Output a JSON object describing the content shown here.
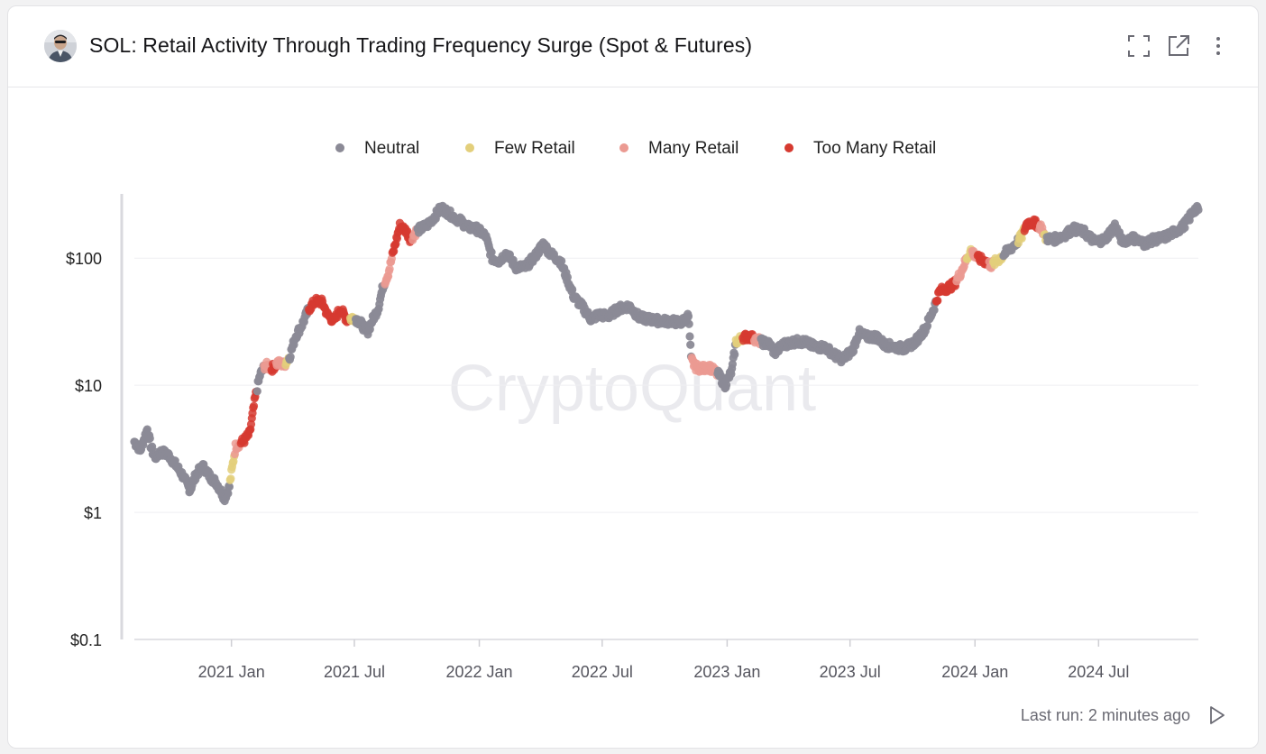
{
  "header": {
    "title": "SOL: Retail Activity Through Trading Frequency Surge (Spot & Futures)",
    "icons": [
      "expand-icon",
      "open-external-icon",
      "more-vertical-icon"
    ]
  },
  "watermark": "CryptoQuant",
  "footer": {
    "last_run": "Last run: 2 minutes ago"
  },
  "colors": {
    "Neutral": "#8b8a96",
    "Few Retail": "#e3cf7b",
    "Many Retail": "#eb9a92",
    "Too Many Retail": "#d63a30"
  },
  "chart_data": {
    "type": "scatter",
    "title": "SOL: Retail Activity Through Trading Frequency Surge (Spot & Futures)",
    "y_scale": "log",
    "ylim": [
      0.1,
      300
    ],
    "y_ticks": [
      0.1,
      1,
      10,
      100
    ],
    "y_tick_labels": [
      "$0.1",
      "$1",
      "$10",
      "$100"
    ],
    "xlim": [
      "2020-08-11",
      "2024-11-25"
    ],
    "x_ticks": [
      "2021-01-01",
      "2021-07-01",
      "2022-01-01",
      "2022-07-01",
      "2023-01-01",
      "2023-07-01",
      "2024-01-01",
      "2024-07-01"
    ],
    "x_tick_labels": [
      "2021 Jan",
      "2021 Jul",
      "2022 Jan",
      "2022 Jul",
      "2023 Jan",
      "2023 Jul",
      "2024 Jan",
      "2024 Jul"
    ],
    "legend": [
      "Neutral",
      "Few Retail",
      "Many Retail",
      "Too Many Retail"
    ],
    "legend_position": "top-center",
    "grid": "horizontal",
    "price_path": [
      [
        "2020-08-11",
        3.6
      ],
      [
        "2020-08-20",
        3.1
      ],
      [
        "2020-08-30",
        4.5
      ],
      [
        "2020-09-05",
        3.2
      ],
      [
        "2020-09-10",
        2.7
      ],
      [
        "2020-09-20",
        3.0
      ],
      [
        "2020-10-01",
        2.8
      ],
      [
        "2020-10-10",
        2.4
      ],
      [
        "2020-10-20",
        2.0
      ],
      [
        "2020-11-01",
        1.5
      ],
      [
        "2020-11-10",
        2.0
      ],
      [
        "2020-11-20",
        2.3
      ],
      [
        "2020-12-01",
        1.9
      ],
      [
        "2020-12-10",
        1.7
      ],
      [
        "2020-12-22",
        1.3
      ],
      [
        "2020-12-29",
        1.6
      ],
      [
        "2021-01-03",
        2.4
      ],
      [
        "2021-01-07",
        3.3
      ],
      [
        "2021-01-20",
        3.7
      ],
      [
        "2021-01-28",
        4.2
      ],
      [
        "2021-02-05",
        8.0
      ],
      [
        "2021-02-12",
        12.0
      ],
      [
        "2021-02-20",
        14.5
      ],
      [
        "2021-03-01",
        13.5
      ],
      [
        "2021-03-10",
        15.0
      ],
      [
        "2021-03-20",
        14.5
      ],
      [
        "2021-03-28",
        17.0
      ],
      [
        "2021-04-05",
        24.0
      ],
      [
        "2021-04-15",
        30.0
      ],
      [
        "2021-04-25",
        40.0
      ],
      [
        "2021-05-05",
        46.0
      ],
      [
        "2021-05-15",
        45.0
      ],
      [
        "2021-05-22",
        36.0
      ],
      [
        "2021-06-01",
        32.0
      ],
      [
        "2021-06-10",
        40.0
      ],
      [
        "2021-06-20",
        33.0
      ],
      [
        "2021-07-01",
        34.0
      ],
      [
        "2021-07-10",
        31.0
      ],
      [
        "2021-07-20",
        26.0
      ],
      [
        "2021-07-28",
        33.0
      ],
      [
        "2021-08-05",
        40.0
      ],
      [
        "2021-08-12",
        60.0
      ],
      [
        "2021-08-20",
        76.0
      ],
      [
        "2021-08-27",
        110.0
      ],
      [
        "2021-09-06",
        180.0
      ],
      [
        "2021-09-15",
        165.0
      ],
      [
        "2021-09-22",
        140.0
      ],
      [
        "2021-10-01",
        165.0
      ],
      [
        "2021-10-15",
        180.0
      ],
      [
        "2021-10-25",
        205.0
      ],
      [
        "2021-11-06",
        250.0
      ],
      [
        "2021-11-15",
        230.0
      ],
      [
        "2021-11-25",
        210.0
      ],
      [
        "2021-12-05",
        195.0
      ],
      [
        "2021-12-15",
        175.0
      ],
      [
        "2021-12-28",
        170.0
      ],
      [
        "2022-01-10",
        150.0
      ],
      [
        "2022-01-20",
        100.0
      ],
      [
        "2022-01-30",
        95.0
      ],
      [
        "2022-02-10",
        110.0
      ],
      [
        "2022-02-24",
        85.0
      ],
      [
        "2022-03-10",
        85.0
      ],
      [
        "2022-03-25",
        105.0
      ],
      [
        "2022-04-05",
        130.0
      ],
      [
        "2022-04-15",
        110.0
      ],
      [
        "2022-04-30",
        95.0
      ],
      [
        "2022-05-10",
        70.0
      ],
      [
        "2022-05-20",
        50.0
      ],
      [
        "2022-06-01",
        42.0
      ],
      [
        "2022-06-15",
        33.0
      ],
      [
        "2022-06-25",
        36.0
      ],
      [
        "2022-07-10",
        35.0
      ],
      [
        "2022-07-25",
        40.0
      ],
      [
        "2022-08-10",
        42.0
      ],
      [
        "2022-08-25",
        34.0
      ],
      [
        "2022-09-10",
        33.0
      ],
      [
        "2022-09-25",
        32.0
      ],
      [
        "2022-10-10",
        32.0
      ],
      [
        "2022-10-25",
        31.0
      ],
      [
        "2022-11-05",
        35.0
      ],
      [
        "2022-11-07",
        24.0
      ],
      [
        "2022-11-09",
        16.0
      ],
      [
        "2022-11-15",
        14.0
      ],
      [
        "2022-11-25",
        13.5
      ],
      [
        "2022-12-05",
        14.0
      ],
      [
        "2022-12-20",
        12.0
      ],
      [
        "2022-12-29",
        10.0
      ],
      [
        "2023-01-08",
        13.0
      ],
      [
        "2023-01-14",
        22.0
      ],
      [
        "2023-01-25",
        24.0
      ],
      [
        "2023-02-05",
        24.0
      ],
      [
        "2023-02-20",
        22.0
      ],
      [
        "2023-03-05",
        21.0
      ],
      [
        "2023-03-12",
        18.0
      ],
      [
        "2023-03-25",
        21.0
      ],
      [
        "2023-04-10",
        22.0
      ],
      [
        "2023-04-25",
        22.0
      ],
      [
        "2023-05-10",
        20.0
      ],
      [
        "2023-05-25",
        20.0
      ],
      [
        "2023-06-10",
        17.0
      ],
      [
        "2023-06-20",
        16.0
      ],
      [
        "2023-07-05",
        19.0
      ],
      [
        "2023-07-14",
        26.0
      ],
      [
        "2023-07-25",
        24.0
      ],
      [
        "2023-08-10",
        24.0
      ],
      [
        "2023-08-20",
        21.0
      ],
      [
        "2023-09-05",
        20.0
      ],
      [
        "2023-09-20",
        19.5
      ],
      [
        "2023-10-05",
        22.0
      ],
      [
        "2023-10-20",
        28.0
      ],
      [
        "2023-11-01",
        40.0
      ],
      [
        "2023-11-10",
        55.0
      ],
      [
        "2023-11-20",
        58.0
      ],
      [
        "2023-12-01",
        62.0
      ],
      [
        "2023-12-10",
        75.0
      ],
      [
        "2023-12-20",
        100.0
      ],
      [
        "2023-12-26",
        115.0
      ],
      [
        "2024-01-05",
        100.0
      ],
      [
        "2024-01-15",
        95.0
      ],
      [
        "2024-01-25",
        88.0
      ],
      [
        "2024-02-05",
        98.0
      ],
      [
        "2024-02-15",
        110.0
      ],
      [
        "2024-03-01",
        130.0
      ],
      [
        "2024-03-10",
        150.0
      ],
      [
        "2024-03-18",
        190.0
      ],
      [
        "2024-03-28",
        190.0
      ],
      [
        "2024-04-08",
        175.0
      ],
      [
        "2024-04-13",
        145.0
      ],
      [
        "2024-04-25",
        140.0
      ],
      [
        "2024-05-10",
        150.0
      ],
      [
        "2024-05-25",
        170.0
      ],
      [
        "2024-06-10",
        160.0
      ],
      [
        "2024-06-25",
        135.0
      ],
      [
        "2024-07-10",
        140.0
      ],
      [
        "2024-07-25",
        180.0
      ],
      [
        "2024-08-05",
        135.0
      ],
      [
        "2024-08-20",
        145.0
      ],
      [
        "2024-09-06",
        130.0
      ],
      [
        "2024-09-20",
        140.0
      ],
      [
        "2024-10-05",
        145.0
      ],
      [
        "2024-10-20",
        160.0
      ],
      [
        "2024-11-01",
        175.0
      ],
      [
        "2024-11-10",
        200.0
      ],
      [
        "2024-11-18",
        240.0
      ],
      [
        "2024-11-25",
        240.0
      ]
    ],
    "classification_periods": [
      {
        "start": "2020-12-30",
        "end": "2021-01-06",
        "label": "Few Retail"
      },
      {
        "start": "2021-01-06",
        "end": "2021-01-15",
        "label": "Many Retail"
      },
      {
        "start": "2021-01-15",
        "end": "2021-02-08",
        "label": "Too Many Retail"
      },
      {
        "start": "2021-02-18",
        "end": "2021-03-01",
        "label": "Many Retail"
      },
      {
        "start": "2021-03-01",
        "end": "2021-03-08",
        "label": "Too Many Retail"
      },
      {
        "start": "2021-03-08",
        "end": "2021-03-22",
        "label": "Many Retail"
      },
      {
        "start": "2021-03-22",
        "end": "2021-03-27",
        "label": "Few Retail"
      },
      {
        "start": "2021-04-25",
        "end": "2021-06-25",
        "label": "Too Many Retail"
      },
      {
        "start": "2021-06-25",
        "end": "2021-07-03",
        "label": "Few Retail"
      },
      {
        "start": "2021-08-15",
        "end": "2021-08-26",
        "label": "Many Retail"
      },
      {
        "start": "2021-08-26",
        "end": "2021-09-25",
        "label": "Too Many Retail"
      },
      {
        "start": "2021-09-25",
        "end": "2021-10-02",
        "label": "Many Retail"
      },
      {
        "start": "2022-11-10",
        "end": "2022-12-18",
        "label": "Many Retail"
      },
      {
        "start": "2023-01-14",
        "end": "2023-01-24",
        "label": "Few Retail"
      },
      {
        "start": "2023-01-24",
        "end": "2023-02-10",
        "label": "Too Many Retail"
      },
      {
        "start": "2023-02-10",
        "end": "2023-02-20",
        "label": "Many Retail"
      },
      {
        "start": "2023-11-05",
        "end": "2023-12-05",
        "label": "Too Many Retail"
      },
      {
        "start": "2023-12-05",
        "end": "2023-12-20",
        "label": "Many Retail"
      },
      {
        "start": "2023-12-20",
        "end": "2023-12-28",
        "label": "Few Retail"
      },
      {
        "start": "2023-12-28",
        "end": "2024-01-05",
        "label": "Many Retail"
      },
      {
        "start": "2024-01-05",
        "end": "2024-01-22",
        "label": "Too Many Retail"
      },
      {
        "start": "2024-01-22",
        "end": "2024-01-28",
        "label": "Many Retail"
      },
      {
        "start": "2024-01-28",
        "end": "2024-02-12",
        "label": "Few Retail"
      },
      {
        "start": "2024-03-05",
        "end": "2024-03-14",
        "label": "Few Retail"
      },
      {
        "start": "2024-03-14",
        "end": "2024-04-05",
        "label": "Too Many Retail"
      },
      {
        "start": "2024-04-05",
        "end": "2024-04-12",
        "label": "Many Retail"
      },
      {
        "start": "2024-04-12",
        "end": "2024-04-16",
        "label": "Few Retail"
      }
    ]
  }
}
